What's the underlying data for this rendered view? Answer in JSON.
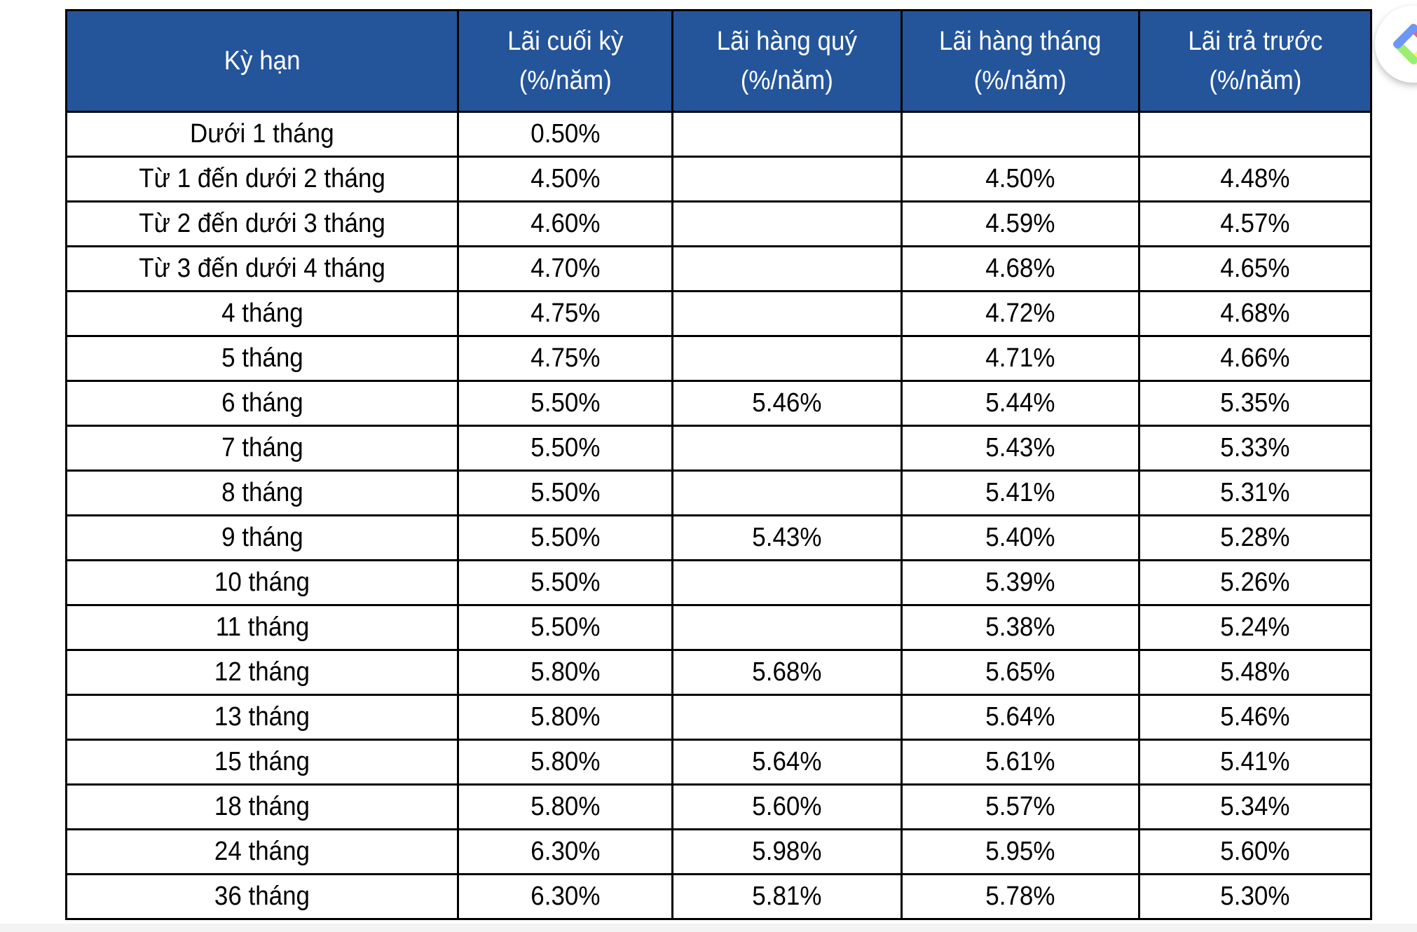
{
  "table": {
    "headers": [
      {
        "line1": "Kỳ hạn",
        "line2": ""
      },
      {
        "line1": "Lãi cuối kỳ",
        "line2": "(%/năm)"
      },
      {
        "line1": "Lãi hàng quý",
        "line2": "(%/năm)"
      },
      {
        "line1": "Lãi hàng tháng",
        "line2": "(%/năm)"
      },
      {
        "line1": "Lãi trả trước",
        "line2": "(%/năm)"
      }
    ],
    "rows": [
      [
        "Dưới 1 tháng",
        "0.50%",
        "",
        "",
        ""
      ],
      [
        "Từ 1 đến dưới 2 tháng",
        "4.50%",
        "",
        "4.50%",
        "4.48%"
      ],
      [
        "Từ 2 đến dưới 3 tháng",
        "4.60%",
        "",
        "4.59%",
        "4.57%"
      ],
      [
        "Từ 3 đến dưới 4 tháng",
        "4.70%",
        "",
        "4.68%",
        "4.65%"
      ],
      [
        "4 tháng",
        "4.75%",
        "",
        "4.72%",
        "4.68%"
      ],
      [
        "5 tháng",
        "4.75%",
        "",
        "4.71%",
        "4.66%"
      ],
      [
        "6 tháng",
        "5.50%",
        "5.46%",
        "5.44%",
        "5.35%"
      ],
      [
        "7 tháng",
        "5.50%",
        "",
        "5.43%",
        "5.33%"
      ],
      [
        "8 tháng",
        "5.50%",
        "",
        "5.41%",
        "5.31%"
      ],
      [
        "9 tháng",
        "5.50%",
        "5.43%",
        "5.40%",
        "5.28%"
      ],
      [
        "10 tháng",
        "5.50%",
        "",
        "5.39%",
        "5.26%"
      ],
      [
        "11 tháng",
        "5.50%",
        "",
        "5.38%",
        "5.24%"
      ],
      [
        "12 tháng",
        "5.80%",
        "5.68%",
        "5.65%",
        "5.48%"
      ],
      [
        "13 tháng",
        "5.80%",
        "",
        "5.64%",
        "5.46%"
      ],
      [
        "15 tháng",
        "5.80%",
        "5.64%",
        "5.61%",
        "5.41%"
      ],
      [
        "18 tháng",
        "5.80%",
        "5.60%",
        "5.57%",
        "5.34%"
      ],
      [
        "24 tháng",
        "6.30%",
        "5.98%",
        "5.95%",
        "5.60%"
      ],
      [
        "36 tháng",
        "6.30%",
        "5.81%",
        "5.78%",
        "5.30%"
      ]
    ]
  },
  "colors": {
    "header_bg": "#24559a",
    "header_text": "#ffffff"
  },
  "extension": {
    "icon": "extension-diamond-icon"
  }
}
